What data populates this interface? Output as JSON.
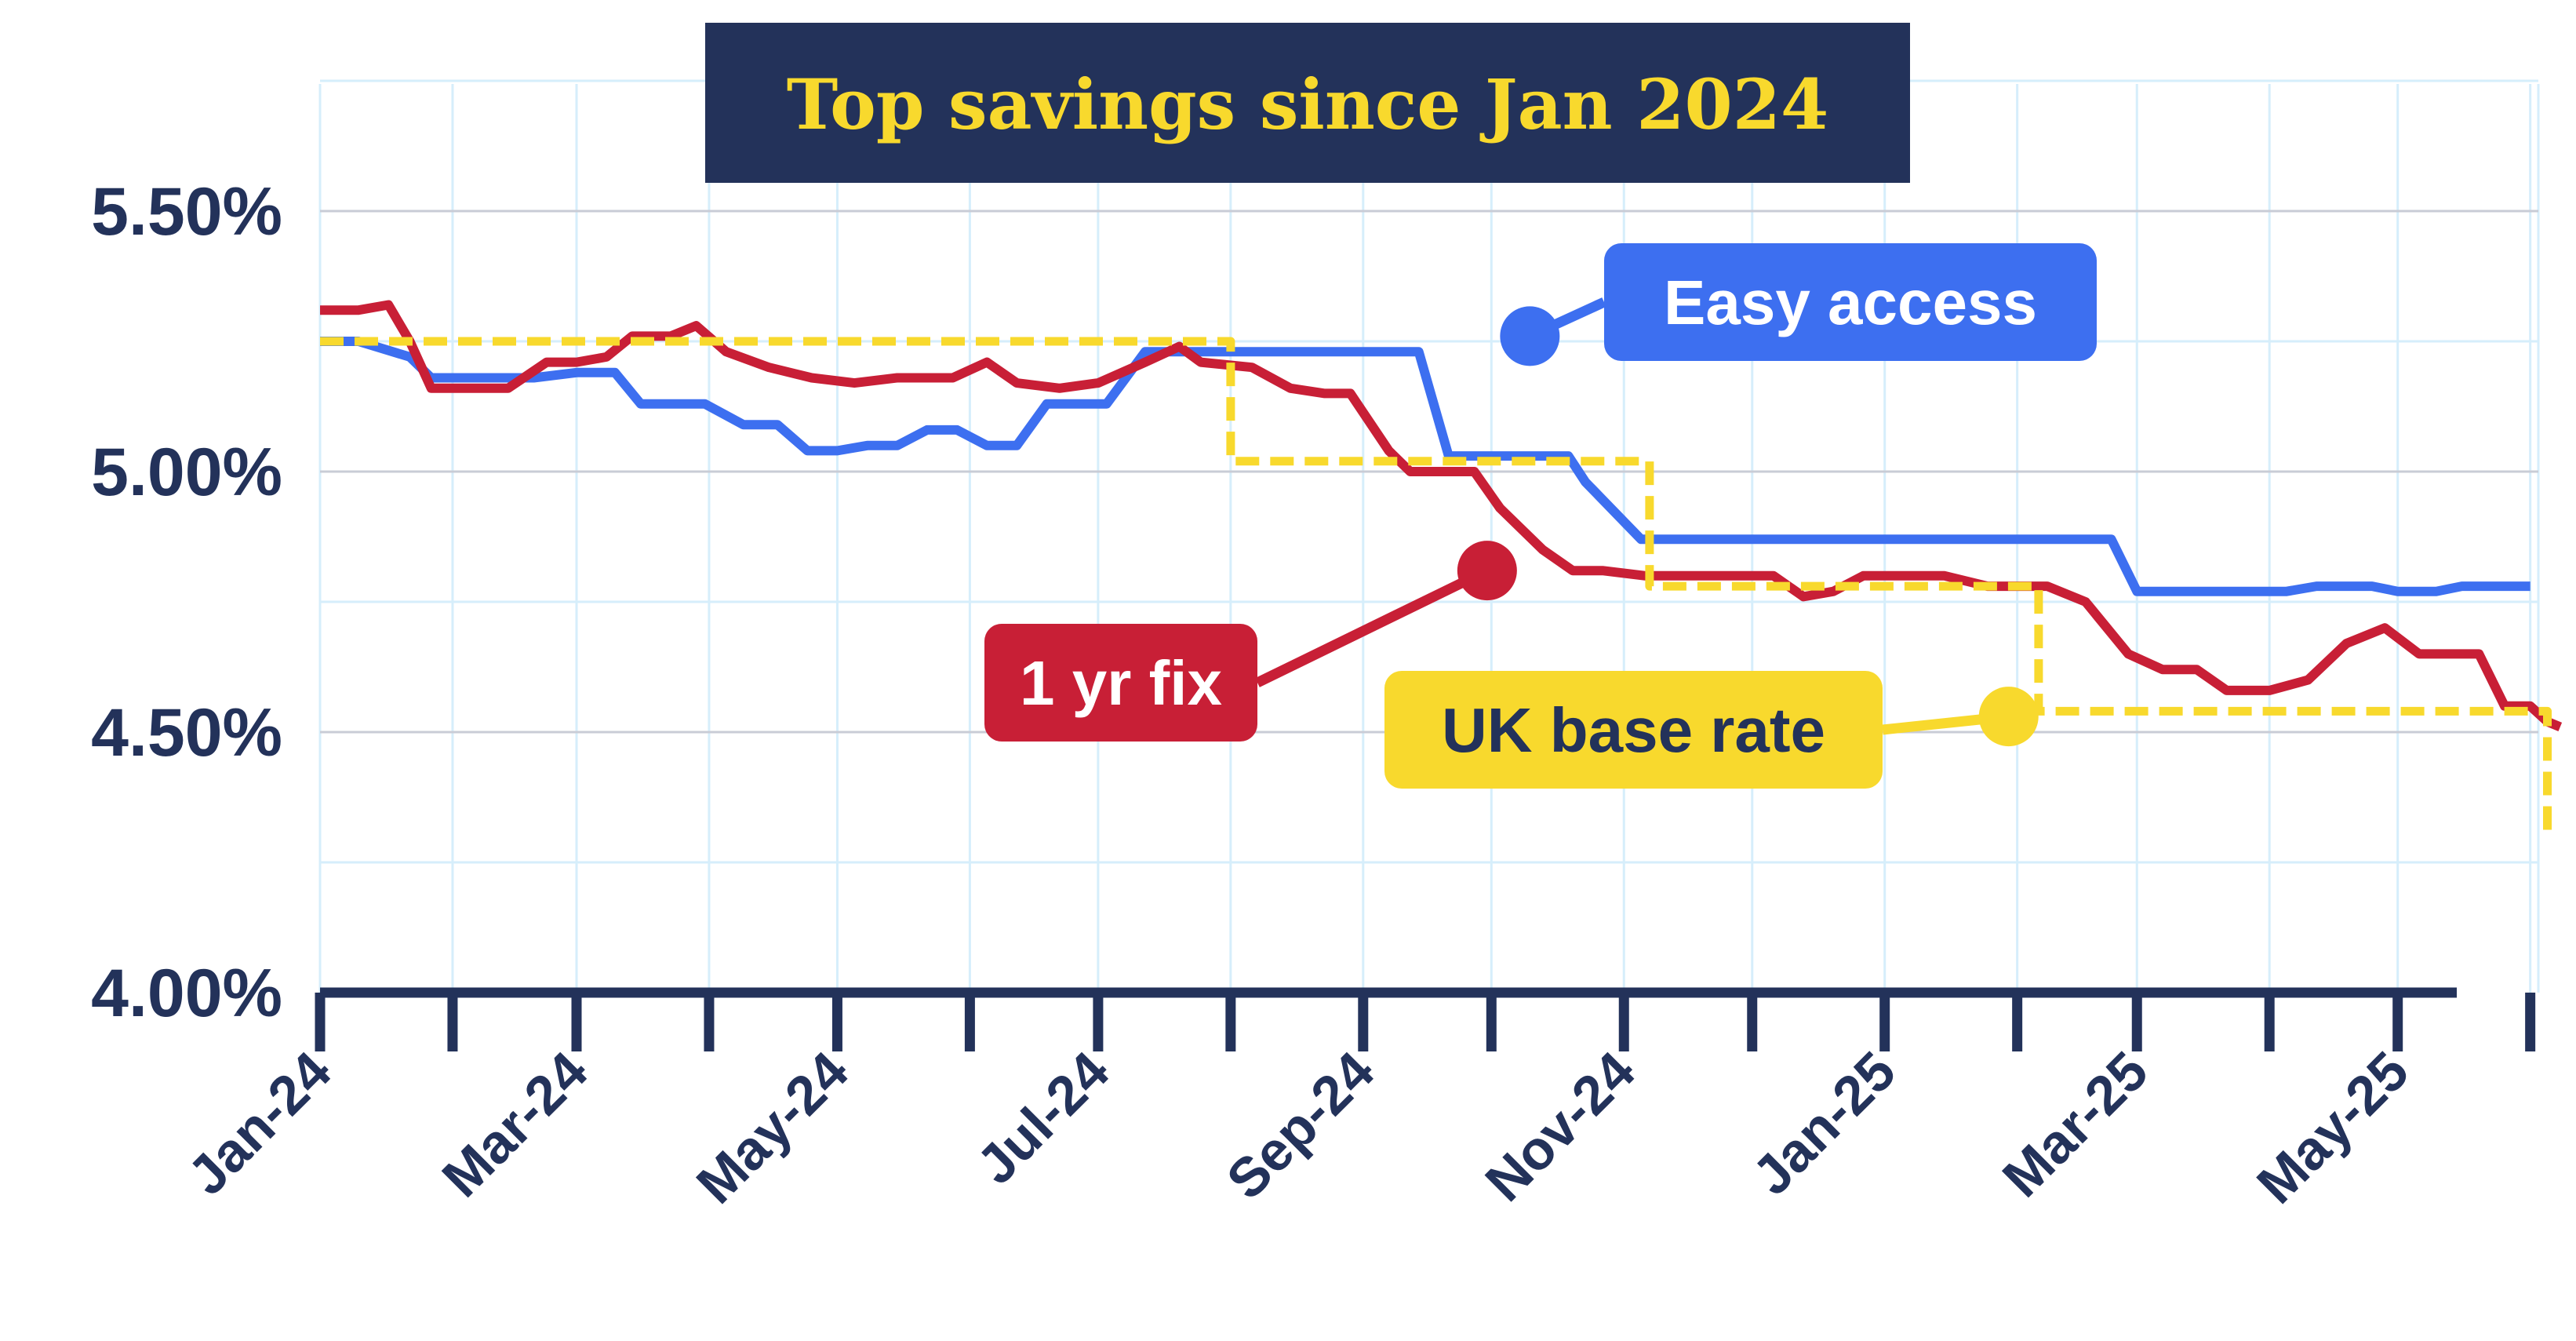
{
  "colors": {
    "navy": "#23325a",
    "easy_access": "#3d6ff0",
    "one_yr_fix": "#c81f36",
    "base_rate": "#f8d92d",
    "grid_major": "#c9ccd6",
    "grid_minor": "#d6eefb"
  },
  "chart_data": {
    "type": "line",
    "title": "Top savings since Jan 2024",
    "ylim": [
      4.0,
      5.75
    ],
    "yticks": [
      "5.50%",
      "5.00%",
      "4.50%",
      "4.00%"
    ],
    "yticks_values": [
      5.5,
      5.0,
      4.5,
      4.0
    ],
    "x_tick_labels": [
      "Jan-24",
      "Mar-24",
      "May-24",
      "Jul-24",
      "Sep-24",
      "Nov-24",
      "Jan-25",
      "Mar-25",
      "May-25"
    ],
    "grid": true,
    "series": [
      {
        "name": "Easy access",
        "color": "#3d6ff0",
        "style": "solid",
        "points": [
          [
            "2024-01-01",
            5.25
          ],
          [
            "2024-01-10",
            5.25
          ],
          [
            "2024-01-22",
            5.22
          ],
          [
            "2024-01-27",
            5.18
          ],
          [
            "2024-02-14",
            5.18
          ],
          [
            "2024-02-20",
            5.18
          ],
          [
            "2024-03-01",
            5.19
          ],
          [
            "2024-03-10",
            5.19
          ],
          [
            "2024-03-16",
            5.13
          ],
          [
            "2024-03-31",
            5.13
          ],
          [
            "2024-04-09",
            5.09
          ],
          [
            "2024-04-17",
            5.09
          ],
          [
            "2024-04-24",
            5.04
          ],
          [
            "2024-05-01",
            5.04
          ],
          [
            "2024-05-08",
            5.05
          ],
          [
            "2024-05-15",
            5.05
          ],
          [
            "2024-05-22",
            5.08
          ],
          [
            "2024-05-29",
            5.08
          ],
          [
            "2024-06-05",
            5.05
          ],
          [
            "2024-06-12",
            5.05
          ],
          [
            "2024-06-19",
            5.13
          ],
          [
            "2024-07-03",
            5.13
          ],
          [
            "2024-07-12",
            5.23
          ],
          [
            "2024-09-14",
            5.23
          ],
          [
            "2024-09-21",
            5.03
          ],
          [
            "2024-10-19",
            5.03
          ],
          [
            "2024-10-23",
            4.98
          ],
          [
            "2024-11-05",
            4.87
          ],
          [
            "2025-02-23",
            4.87
          ],
          [
            "2025-03-01",
            4.77
          ],
          [
            "2025-04-05",
            4.77
          ],
          [
            "2025-04-12",
            4.78
          ],
          [
            "2025-04-25",
            4.78
          ],
          [
            "2025-05-01",
            4.77
          ],
          [
            "2025-05-10",
            4.77
          ],
          [
            "2025-05-16",
            4.78
          ],
          [
            "2025-06-01",
            4.78
          ]
        ]
      },
      {
        "name": "1 yr fix",
        "color": "#c81f36",
        "style": "solid",
        "points": [
          [
            "2024-01-01",
            5.31
          ],
          [
            "2024-01-10",
            5.31
          ],
          [
            "2024-01-17",
            5.32
          ],
          [
            "2024-01-22",
            5.25
          ],
          [
            "2024-01-27",
            5.16
          ],
          [
            "2024-02-14",
            5.16
          ],
          [
            "2024-02-23",
            5.21
          ],
          [
            "2024-03-01",
            5.21
          ],
          [
            "2024-03-08",
            5.22
          ],
          [
            "2024-03-14",
            5.26
          ],
          [
            "2024-03-23",
            5.26
          ],
          [
            "2024-03-29",
            5.28
          ],
          [
            "2024-04-05",
            5.23
          ],
          [
            "2024-04-15",
            5.2
          ],
          [
            "2024-04-25",
            5.18
          ],
          [
            "2024-05-05",
            5.17
          ],
          [
            "2024-05-15",
            5.18
          ],
          [
            "2024-05-28",
            5.18
          ],
          [
            "2024-06-05",
            5.21
          ],
          [
            "2024-06-12",
            5.17
          ],
          [
            "2024-06-22",
            5.16
          ],
          [
            "2024-07-01",
            5.17
          ],
          [
            "2024-07-12",
            5.21
          ],
          [
            "2024-07-20",
            5.24
          ],
          [
            "2024-07-25",
            5.21
          ],
          [
            "2024-08-06",
            5.2
          ],
          [
            "2024-08-15",
            5.16
          ],
          [
            "2024-08-23",
            5.15
          ],
          [
            "2024-08-29",
            5.15
          ],
          [
            "2024-09-07",
            5.04
          ],
          [
            "2024-09-12",
            5.0
          ],
          [
            "2024-09-27",
            5.0
          ],
          [
            "2024-10-03",
            4.93
          ],
          [
            "2024-10-13",
            4.85
          ],
          [
            "2024-10-20",
            4.81
          ],
          [
            "2024-10-27",
            4.81
          ],
          [
            "2024-11-06",
            4.8
          ],
          [
            "2024-11-30",
            4.8
          ],
          [
            "2024-12-06",
            4.8
          ],
          [
            "2024-12-13",
            4.76
          ],
          [
            "2024-12-20",
            4.77
          ],
          [
            "2024-12-27",
            4.8
          ],
          [
            "2025-01-15",
            4.8
          ],
          [
            "2025-01-25",
            4.78
          ],
          [
            "2025-02-08",
            4.78
          ],
          [
            "2025-02-17",
            4.75
          ],
          [
            "2025-02-27",
            4.65
          ],
          [
            "2025-03-07",
            4.62
          ],
          [
            "2025-03-15",
            4.62
          ],
          [
            "2025-03-22",
            4.58
          ],
          [
            "2025-04-01",
            4.58
          ],
          [
            "2025-04-10",
            4.6
          ],
          [
            "2025-04-19",
            4.67
          ],
          [
            "2025-04-28",
            4.7
          ],
          [
            "2025-05-06",
            4.65
          ],
          [
            "2025-05-20",
            4.65
          ],
          [
            "2025-05-26",
            4.55
          ],
          [
            "2025-06-01",
            4.55
          ],
          [
            "2025-06-05",
            4.52
          ],
          [
            "2025-06-08",
            4.51
          ]
        ]
      },
      {
        "name": "UK base rate",
        "color": "#f8d92d",
        "style": "dashed",
        "points": [
          [
            "2024-01-01",
            5.25
          ],
          [
            "2024-08-01",
            5.25
          ],
          [
            "2024-08-01",
            5.02
          ],
          [
            "2024-11-07",
            5.02
          ],
          [
            "2024-11-07",
            4.78
          ],
          [
            "2025-02-06",
            4.78
          ],
          [
            "2025-02-06",
            4.54
          ],
          [
            "2025-06-05",
            4.54
          ],
          [
            "2025-06-05",
            4.31
          ]
        ]
      }
    ],
    "callouts": [
      {
        "label": "Easy access",
        "series": "Easy access",
        "anchor": [
          "2024-10-10",
          5.26
        ]
      },
      {
        "label": "1 yr fix",
        "series": "1 yr fix",
        "anchor": [
          "2024-09-30",
          4.81
        ]
      },
      {
        "label": "UK base rate",
        "series": "UK base rate",
        "anchor": [
          "2025-01-30",
          4.53
        ]
      }
    ]
  }
}
